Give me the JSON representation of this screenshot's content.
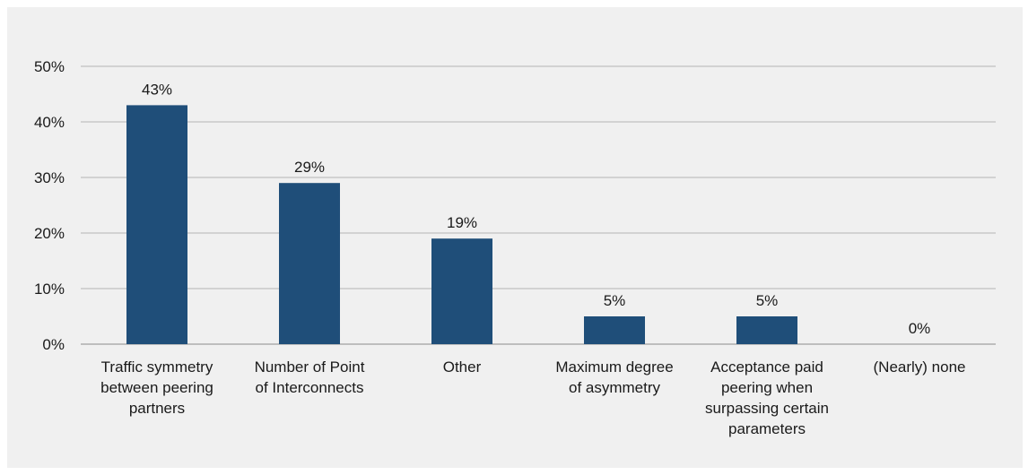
{
  "chart_data": {
    "type": "bar",
    "title": "",
    "xlabel": "",
    "ylabel": "",
    "categories": [
      [
        "Traffic symmetry",
        "between peering",
        "partners"
      ],
      [
        "Number of Point",
        "of Interconnects"
      ],
      [
        "Other"
      ],
      [
        "Maximum degree",
        "of asymmetry"
      ],
      [
        "Acceptance paid",
        "peering when",
        "surpassing certain",
        "parameters"
      ],
      [
        "(Nearly) none"
      ]
    ],
    "values": [
      43,
      29,
      19,
      5,
      5,
      0
    ],
    "value_labels": [
      "43%",
      "29%",
      "19%",
      "5%",
      "5%",
      "0%"
    ],
    "y_ticks": [
      0,
      10,
      20,
      30,
      40,
      50
    ],
    "y_tick_labels": [
      "0%",
      "10%",
      "20%",
      "30%",
      "40%",
      "50%"
    ],
    "ylim": [
      0,
      50
    ],
    "grid": true,
    "legend": "none",
    "colors": {
      "bar": "#1f4e79",
      "background": "#f0f0f0",
      "grid": "#b4b4b4"
    }
  }
}
